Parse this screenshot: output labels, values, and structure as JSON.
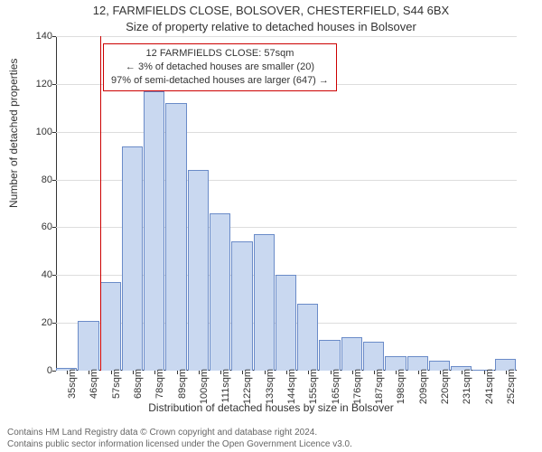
{
  "title_line1": "12, FARMFIELDS CLOSE, BOLSOVER, CHESTERFIELD, S44 6BX",
  "title_line2": "Size of property relative to detached houses in Bolsover",
  "ylabel": "Number of detached properties",
  "xlabel": "Distribution of detached houses by size in Bolsover",
  "footer_line1": "Contains HM Land Registry data © Crown copyright and database right 2024.",
  "footer_line2": "Contains public sector information licensed under the Open Government Licence v3.0.",
  "annotation": {
    "line1": "12 FARMFIELDS CLOSE: 57sqm",
    "line2": "← 3% of detached houses are smaller (20)",
    "line3": "97% of semi-detached houses are larger (647) →"
  },
  "chart": {
    "type": "histogram",
    "ylim": [
      0,
      140
    ],
    "ytick_step": 20,
    "categories": [
      "35sqm",
      "46sqm",
      "57sqm",
      "68sqm",
      "78sqm",
      "89sqm",
      "100sqm",
      "111sqm",
      "122sqm",
      "133sqm",
      "144sqm",
      "155sqm",
      "165sqm",
      "176sqm",
      "187sqm",
      "198sqm",
      "209sqm",
      "220sqm",
      "231sqm",
      "241sqm",
      "252sqm"
    ],
    "values": [
      1,
      21,
      37,
      94,
      117,
      112,
      84,
      66,
      54,
      57,
      40,
      28,
      13,
      14,
      12,
      6,
      6,
      4,
      2,
      0,
      5
    ],
    "bar_fill": "#c9d8f0",
    "bar_stroke": "#6a8bc8",
    "marker_index": 2,
    "marker_color": "#cc0000",
    "grid_color": "#dddddd",
    "background": "#ffffff",
    "title_fontsize": 13,
    "label_fontsize": 12,
    "tick_fontsize": 11,
    "anno_fontsize": 11
  }
}
